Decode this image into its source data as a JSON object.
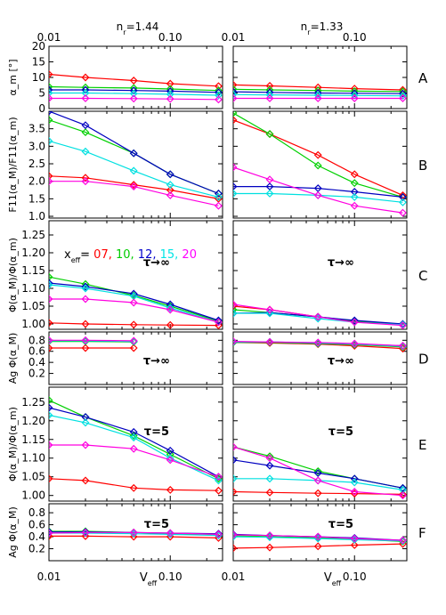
{
  "figure": {
    "top_axis_labels": [
      "n_r=1.44",
      "n_r=1.33"
    ],
    "x_tick_labels": [
      "0.01",
      "0.10"
    ],
    "x_label": "V_eff",
    "legend": {
      "prefix": "x_eff=",
      "entries": [
        {
          "label": "07,",
          "color": "#ff0000"
        },
        {
          "label": "10,",
          "color": "#00cc00"
        },
        {
          "label": "12,",
          "color": "#0000cc"
        },
        {
          "label": "15,",
          "color": "#00e5e5"
        },
        {
          "label": "20",
          "color": "#ff00ff"
        }
      ]
    },
    "series_colors": [
      "#ff0000",
      "#00d000",
      "#0000c0",
      "#00e0e0",
      "#ff00e0"
    ]
  },
  "chart_data": [
    {
      "panel": "A",
      "type": "line",
      "ylabel": "α_m [°]",
      "annotation": "",
      "xscale": "log",
      "xlim": [
        0.01,
        0.27
      ],
      "ylim": [
        0,
        20
      ],
      "yticks": [
        0,
        5,
        10,
        15,
        20
      ],
      "yticklabels": [
        "0",
        "5",
        "10",
        "15",
        "20"
      ],
      "series_names": [
        "07",
        "10",
        "12",
        "15",
        "20"
      ],
      "columns": [
        {
          "n_r": "1.44",
          "x": [
            0.01,
            0.02,
            0.05,
            0.1,
            0.25
          ],
          "series": [
            [
              11.0,
              10.0,
              9.0,
              8.0,
              7.2
            ],
            [
              7.0,
              6.8,
              6.6,
              6.3,
              5.8
            ],
            [
              6.0,
              6.0,
              5.8,
              5.6,
              5.2
            ],
            [
              5.0,
              5.0,
              4.8,
              4.6,
              4.3
            ],
            [
              3.3,
              3.3,
              3.2,
              3.1,
              2.9
            ]
          ]
        },
        {
          "n_r": "1.33",
          "x": [
            0.01,
            0.02,
            0.05,
            0.1,
            0.25
          ],
          "series": [
            [
              7.6,
              7.3,
              6.8,
              6.4,
              6.0
            ],
            [
              6.2,
              6.0,
              5.8,
              5.6,
              5.5
            ],
            [
              5.4,
              5.2,
              5.0,
              4.9,
              4.8
            ],
            [
              4.5,
              4.4,
              4.3,
              4.2,
              4.1
            ],
            [
              3.3,
              3.3,
              3.3,
              3.3,
              3.3
            ]
          ]
        }
      ]
    },
    {
      "panel": "B",
      "type": "line",
      "ylabel": "F11(α_M)/F11(α_m)",
      "annotation": "",
      "xscale": "log",
      "xlim": [
        0.01,
        0.27
      ],
      "ylim": [
        0.95,
        4.0
      ],
      "yticks": [
        1.0,
        1.5,
        2.0,
        2.5,
        3.0,
        3.5
      ],
      "yticklabels": [
        "1.0",
        "1.5",
        "2.0",
        "2.5",
        "3.0",
        "3.5"
      ],
      "series_names": [
        "07",
        "10",
        "12",
        "15",
        "20"
      ],
      "columns": [
        {
          "n_r": "1.44",
          "x": [
            0.01,
            0.02,
            0.05,
            0.1,
            0.25
          ],
          "series": [
            [
              2.15,
              2.1,
              1.9,
              1.75,
              1.5
            ],
            [
              3.75,
              3.4,
              2.8,
              2.2,
              1.65
            ],
            [
              4.0,
              3.6,
              2.8,
              2.2,
              1.65
            ],
            [
              3.15,
              2.85,
              2.3,
              1.9,
              1.55
            ],
            [
              2.0,
              2.0,
              1.85,
              1.6,
              1.3
            ]
          ]
        },
        {
          "n_r": "1.33",
          "x": [
            0.01,
            0.02,
            0.05,
            0.1,
            0.25
          ],
          "series": [
            [
              3.75,
              3.35,
              2.75,
              2.2,
              1.6
            ],
            [
              3.95,
              3.35,
              2.45,
              1.95,
              1.55
            ],
            [
              1.85,
              1.85,
              1.8,
              1.7,
              1.55
            ],
            [
              1.65,
              1.65,
              1.6,
              1.55,
              1.4
            ],
            [
              2.4,
              2.05,
              1.6,
              1.3,
              1.1
            ]
          ]
        }
      ]
    },
    {
      "panel": "C",
      "type": "line",
      "ylabel": "Φ(α_M)/Φ(α_m)",
      "annotation": "τ→∞",
      "xscale": "log",
      "xlim": [
        0.01,
        0.27
      ],
      "ylim": [
        0.985,
        1.29
      ],
      "yticks": [
        1.0,
        1.05,
        1.1,
        1.15,
        1.2,
        1.25
      ],
      "yticklabels": [
        "1.00",
        "1.05",
        "1.10",
        "1.15",
        "1.20",
        "1.25"
      ],
      "series_names": [
        "07",
        "10",
        "12",
        "15",
        "20"
      ],
      "columns": [
        {
          "n_r": "1.44",
          "x": [
            0.01,
            0.02,
            0.05,
            0.1,
            0.25
          ],
          "series": [
            [
              1.003,
              1.0,
              0.998,
              0.997,
              0.996
            ],
            [
              1.132,
              1.112,
              1.08,
              1.05,
              1.008
            ],
            [
              1.115,
              1.105,
              1.085,
              1.055,
              1.01
            ],
            [
              1.11,
              1.1,
              1.078,
              1.045,
              1.005
            ],
            [
              1.07,
              1.07,
              1.06,
              1.04,
              1.005
            ]
          ]
        },
        {
          "n_r": "1.33",
          "x": [
            0.01,
            0.02,
            0.05,
            0.1,
            0.25
          ],
          "series": [
            [
              1.05,
              1.04,
              1.02,
              1.008,
              0.998
            ],
            [
              1.04,
              1.032,
              1.02,
              1.008,
              0.998
            ],
            [
              1.03,
              1.032,
              1.02,
              1.01,
              1.0
            ],
            [
              1.03,
              1.03,
              1.015,
              1.005,
              0.998
            ],
            [
              1.055,
              1.04,
              1.02,
              1.005,
              0.996
            ]
          ]
        }
      ]
    },
    {
      "panel": "D",
      "type": "line",
      "ylabel": "Ag Φ(α_M)",
      "annotation": "τ→∞",
      "xscale": "log",
      "xlim": [
        0.01,
        0.27
      ],
      "ylim": [
        0.0,
        0.95
      ],
      "yticks": [
        0.2,
        0.4,
        0.6,
        0.8
      ],
      "yticklabels": [
        "0.2",
        "0.4",
        "0.6",
        "0.8"
      ],
      "series_names": [
        "07",
        "10",
        "12",
        "15",
        "20"
      ],
      "columns": [
        {
          "n_r": "1.44",
          "x": [
            0.01,
            0.02,
            0.05
          ],
          "series": [
            [
              0.66,
              0.66,
              0.66
            ],
            [
              0.78,
              0.78,
              0.77
            ],
            [
              0.79,
              0.79,
              0.78
            ],
            [
              0.79,
              0.79,
              0.78
            ],
            [
              0.8,
              0.8,
              0.79
            ]
          ]
        },
        {
          "n_r": "1.33",
          "x": [
            0.01,
            0.02,
            0.05,
            0.1,
            0.25
          ],
          "series": [
            [
              0.76,
              0.75,
              0.73,
              0.7,
              0.65
            ],
            [
              0.76,
              0.76,
              0.74,
              0.72,
              0.68
            ],
            [
              0.77,
              0.77,
              0.75,
              0.73,
              0.7
            ],
            [
              0.77,
              0.77,
              0.75,
              0.73,
              0.69
            ],
            [
              0.78,
              0.77,
              0.76,
              0.74,
              0.7
            ]
          ]
        }
      ]
    },
    {
      "panel": "E",
      "type": "line",
      "ylabel": "Φ(α_M)/Φ(α_m)",
      "annotation": "τ=5",
      "xscale": "log",
      "xlim": [
        0.01,
        0.27
      ],
      "ylim": [
        0.985,
        1.29
      ],
      "yticks": [
        1.0,
        1.05,
        1.1,
        1.15,
        1.2,
        1.25
      ],
      "yticklabels": [
        "1.00",
        "1.05",
        "1.10",
        "1.15",
        "1.20",
        "1.25"
      ],
      "series_names": [
        "07",
        "10",
        "12",
        "15",
        "20"
      ],
      "columns": [
        {
          "n_r": "1.44",
          "x": [
            0.01,
            0.02,
            0.05,
            0.1,
            0.25
          ],
          "series": [
            [
              1.045,
              1.04,
              1.02,
              1.015,
              1.013
            ],
            [
              1.255,
              1.21,
              1.16,
              1.11,
              1.045
            ],
            [
              1.235,
              1.21,
              1.17,
              1.12,
              1.05
            ],
            [
              1.215,
              1.195,
              1.155,
              1.1,
              1.04
            ],
            [
              1.135,
              1.135,
              1.125,
              1.095,
              1.05
            ]
          ]
        },
        {
          "n_r": "1.33",
          "x": [
            0.01,
            0.02,
            0.05,
            0.1,
            0.25
          ],
          "series": [
            [
              1.01,
              1.008,
              1.006,
              1.005,
              1.003
            ],
            [
              1.13,
              1.105,
              1.065,
              1.045,
              1.02
            ],
            [
              1.095,
              1.08,
              1.06,
              1.045,
              1.02
            ],
            [
              1.045,
              1.045,
              1.04,
              1.035,
              1.015
            ],
            [
              1.13,
              1.1,
              1.04,
              1.01,
              1.0
            ]
          ]
        }
      ]
    },
    {
      "panel": "F",
      "type": "line",
      "ylabel": "Ag Φ(α_M)",
      "annotation": "τ=5",
      "xscale": "log",
      "xlim": [
        0.01,
        0.27
      ],
      "ylim": [
        0.0,
        0.95
      ],
      "yticks": [
        0.2,
        0.4,
        0.6,
        0.8
      ],
      "yticklabels": [
        "0.2",
        "0.4",
        "0.6",
        "0.8"
      ],
      "series_names": [
        "07",
        "10",
        "12",
        "15",
        "20"
      ],
      "columns": [
        {
          "n_r": "1.44",
          "x": [
            0.01,
            0.02,
            0.05,
            0.1,
            0.25
          ],
          "series": [
            [
              0.41,
              0.41,
              0.4,
              0.4,
              0.38
            ],
            [
              0.49,
              0.49,
              0.47,
              0.45,
              0.44
            ],
            [
              0.48,
              0.48,
              0.47,
              0.46,
              0.45
            ],
            [
              0.46,
              0.46,
              0.45,
              0.44,
              0.42
            ],
            [
              0.46,
              0.47,
              0.47,
              0.46,
              0.44
            ]
          ]
        },
        {
          "n_r": "1.33",
          "x": [
            0.01,
            0.02,
            0.05,
            0.1,
            0.25
          ],
          "series": [
            [
              0.21,
              0.22,
              0.24,
              0.26,
              0.28
            ],
            [
              0.42,
              0.4,
              0.38,
              0.36,
              0.32
            ],
            [
              0.44,
              0.42,
              0.4,
              0.38,
              0.34
            ],
            [
              0.4,
              0.39,
              0.37,
              0.35,
              0.33
            ],
            [
              0.43,
              0.42,
              0.4,
              0.37,
              0.34
            ]
          ]
        }
      ]
    }
  ]
}
